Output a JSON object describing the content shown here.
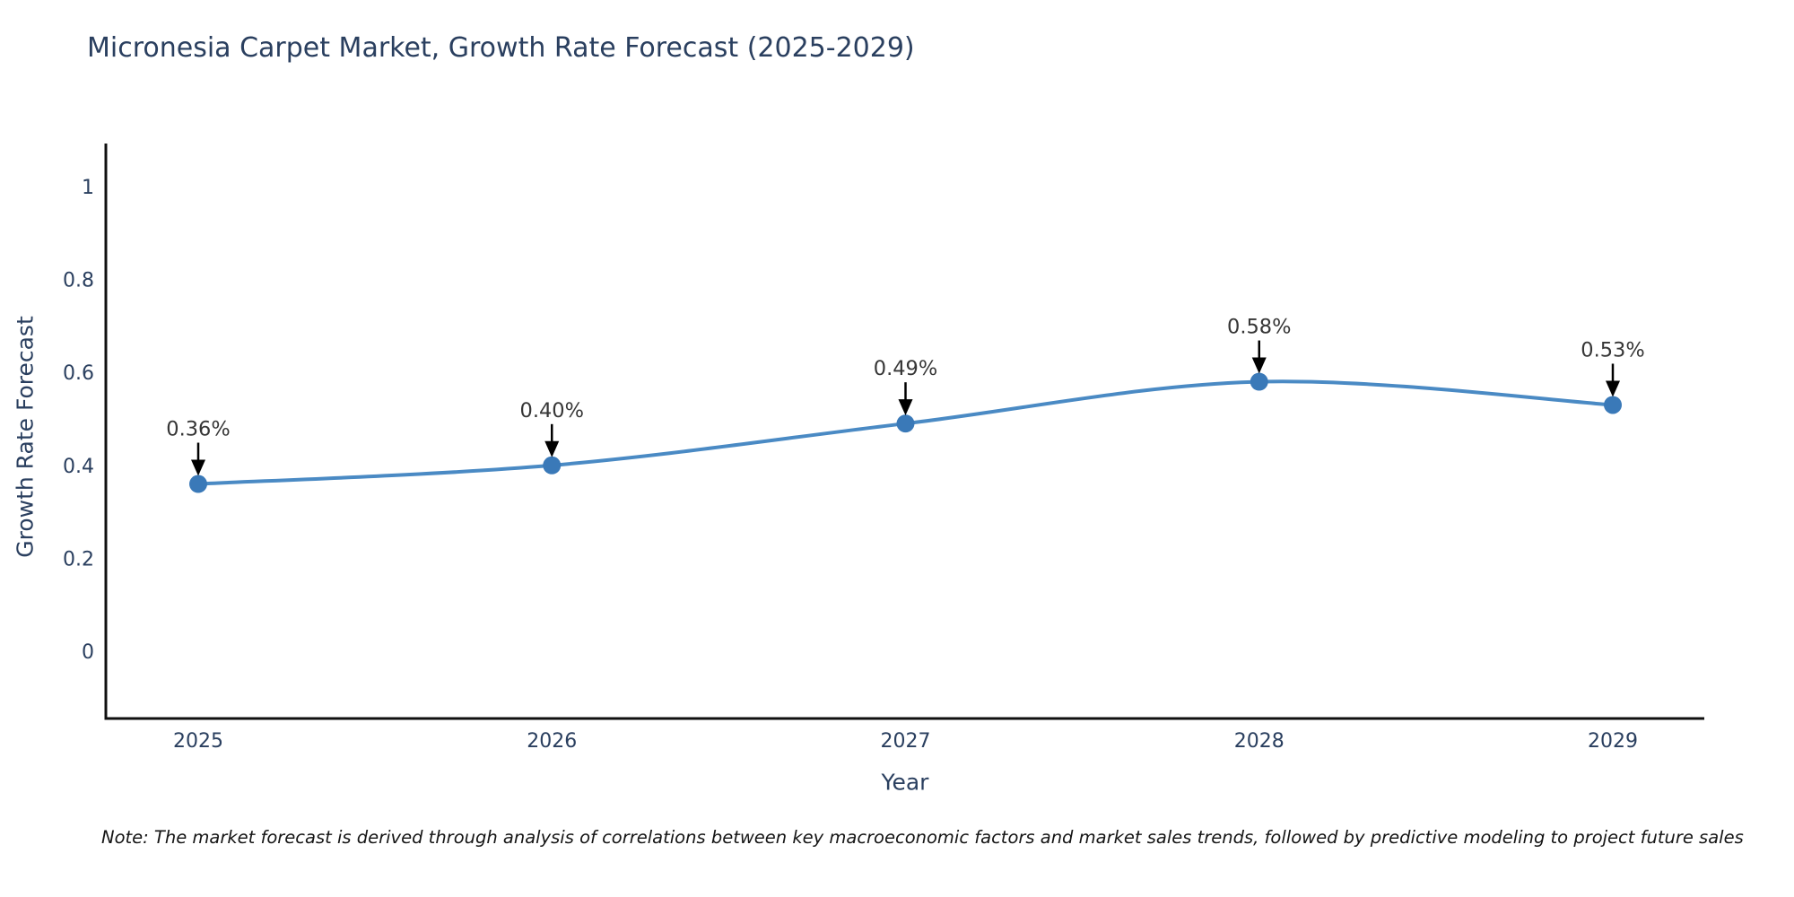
{
  "title": "Micronesia Carpet Market, Growth Rate Forecast (2025-2029)",
  "note": "Note: The market forecast is derived through analysis of correlations between key macroeconomic factors and market sales trends, followed by predictive modeling to project future sales",
  "chart_data": {
    "type": "line",
    "title": "Micronesia Carpet Market, Growth Rate Forecast (2025-2029)",
    "xlabel": "Year",
    "ylabel": "Growth Rate Forecast",
    "x": [
      2025,
      2026,
      2027,
      2028,
      2029
    ],
    "values": [
      0.36,
      0.4,
      0.49,
      0.58,
      0.53
    ],
    "point_labels": [
      "0.36%",
      "0.40%",
      "0.49%",
      "0.58%",
      "0.53%"
    ],
    "x_tick_labels": [
      "2025",
      "2026",
      "2027",
      "2028",
      "2029"
    ],
    "y_ticks": [
      0,
      0.2,
      0.4,
      0.6,
      0.8,
      1
    ],
    "y_tick_labels": [
      "0",
      "0.2",
      "0.4",
      "0.6",
      "0.8",
      "1"
    ],
    "ylim": [
      -0.145,
      1.1
    ],
    "line_shape": "spline",
    "grid": false,
    "legend": "none",
    "colors": {
      "line": "#4a8ac4",
      "marker": "#3a79b8",
      "axis_line": "#101010",
      "tick_text": "#2a3f5f",
      "annotation_text": "#363636",
      "arrow": "#000000",
      "background": "#ffffff"
    }
  }
}
